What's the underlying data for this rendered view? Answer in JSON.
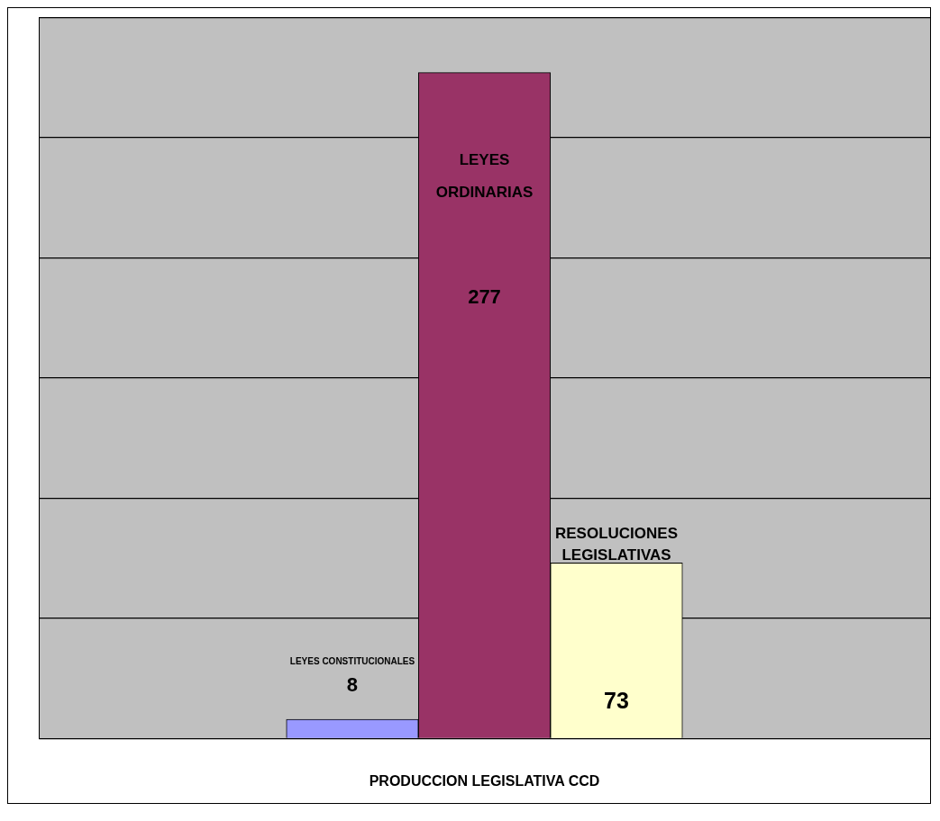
{
  "chart_data": {
    "type": "bar",
    "categories": [
      null,
      null,
      null
    ],
    "xlabel": "PRODUCCION LEGISLATIVA CCD",
    "values": [
      8,
      277,
      73
    ],
    "colors": [
      "#9999ff",
      "#993366",
      "#ffffcc"
    ],
    "annotations": [
      "LEYES CONSTITUCIONALES",
      "LEYES ORDINARIAS",
      "RESOLUCIONES LEGISLATIVAS"
    ],
    "ylim": [
      0,
      300
    ],
    "yticks": [
      {
        "value": 0,
        "label": null
      },
      {
        "value": 50,
        "label": null
      },
      {
        "value": 100,
        "label": null
      },
      {
        "value": 150,
        "label": null
      },
      {
        "value": 200,
        "label": null
      },
      {
        "value": 250,
        "label": null
      },
      {
        "value": 300,
        "label": null
      }
    ],
    "grid": "y",
    "data_labels": true
  }
}
